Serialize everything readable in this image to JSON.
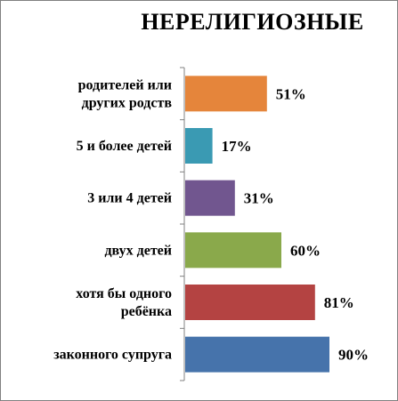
{
  "chart_data": {
    "type": "bar",
    "orientation": "horizontal",
    "title": "НЕРЕЛИГИОЗНЫЕ",
    "categories": [
      [
        "родителей или",
        "других родств"
      ],
      [
        "5 и более детей"
      ],
      [
        "3 или 4 детей"
      ],
      [
        "двух детей"
      ],
      [
        "хотя бы одного",
        "ребёнка"
      ],
      [
        "законного супруга"
      ]
    ],
    "values": [
      51,
      17,
      31,
      60,
      81,
      90
    ],
    "value_labels": [
      "51%",
      "17%",
      "31%",
      "60%",
      "81%",
      "90%"
    ],
    "colors": [
      "#e5853b",
      "#3a9ab3",
      "#71568f",
      "#8aa94b",
      "#b44342",
      "#4673ab"
    ],
    "xlim": [
      0,
      100
    ],
    "grid": false,
    "legend": "none"
  }
}
